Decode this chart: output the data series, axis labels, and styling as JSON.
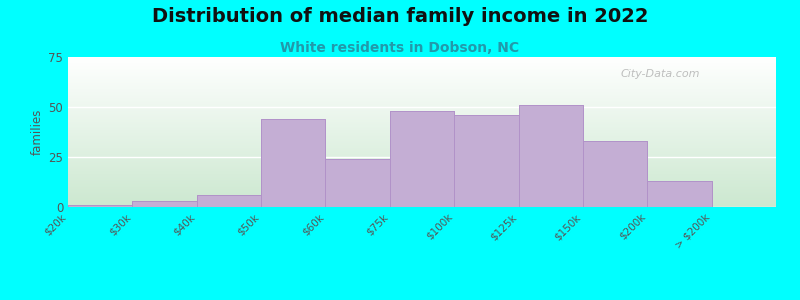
{
  "title": "Distribution of median family income in 2022",
  "subtitle": "White residents in Dobson, NC",
  "ylabel": "families",
  "background_color": "#00FFFF",
  "plot_bg_top": "#ffffff",
  "plot_bg_bottom": "#cce8d0",
  "bar_color": "#c4aed4",
  "bar_edge_color": "#b090c8",
  "title_fontsize": 14,
  "subtitle_fontsize": 10,
  "subtitle_color": "#2299aa",
  "tick_labels": [
    "$20k",
    "$30k",
    "$40k",
    "$50k",
    "$60k",
    "$75k",
    "$100k",
    "$125k",
    "$150k",
    "$200k",
    "> $200k"
  ],
  "values": [
    1,
    3,
    6,
    44,
    24,
    48,
    46,
    51,
    33,
    13,
    0
  ],
  "ylim": [
    0,
    75
  ],
  "yticks": [
    0,
    25,
    50,
    75
  ],
  "watermark": "City-Data.com",
  "watermark_color": "#aaaaaa"
}
